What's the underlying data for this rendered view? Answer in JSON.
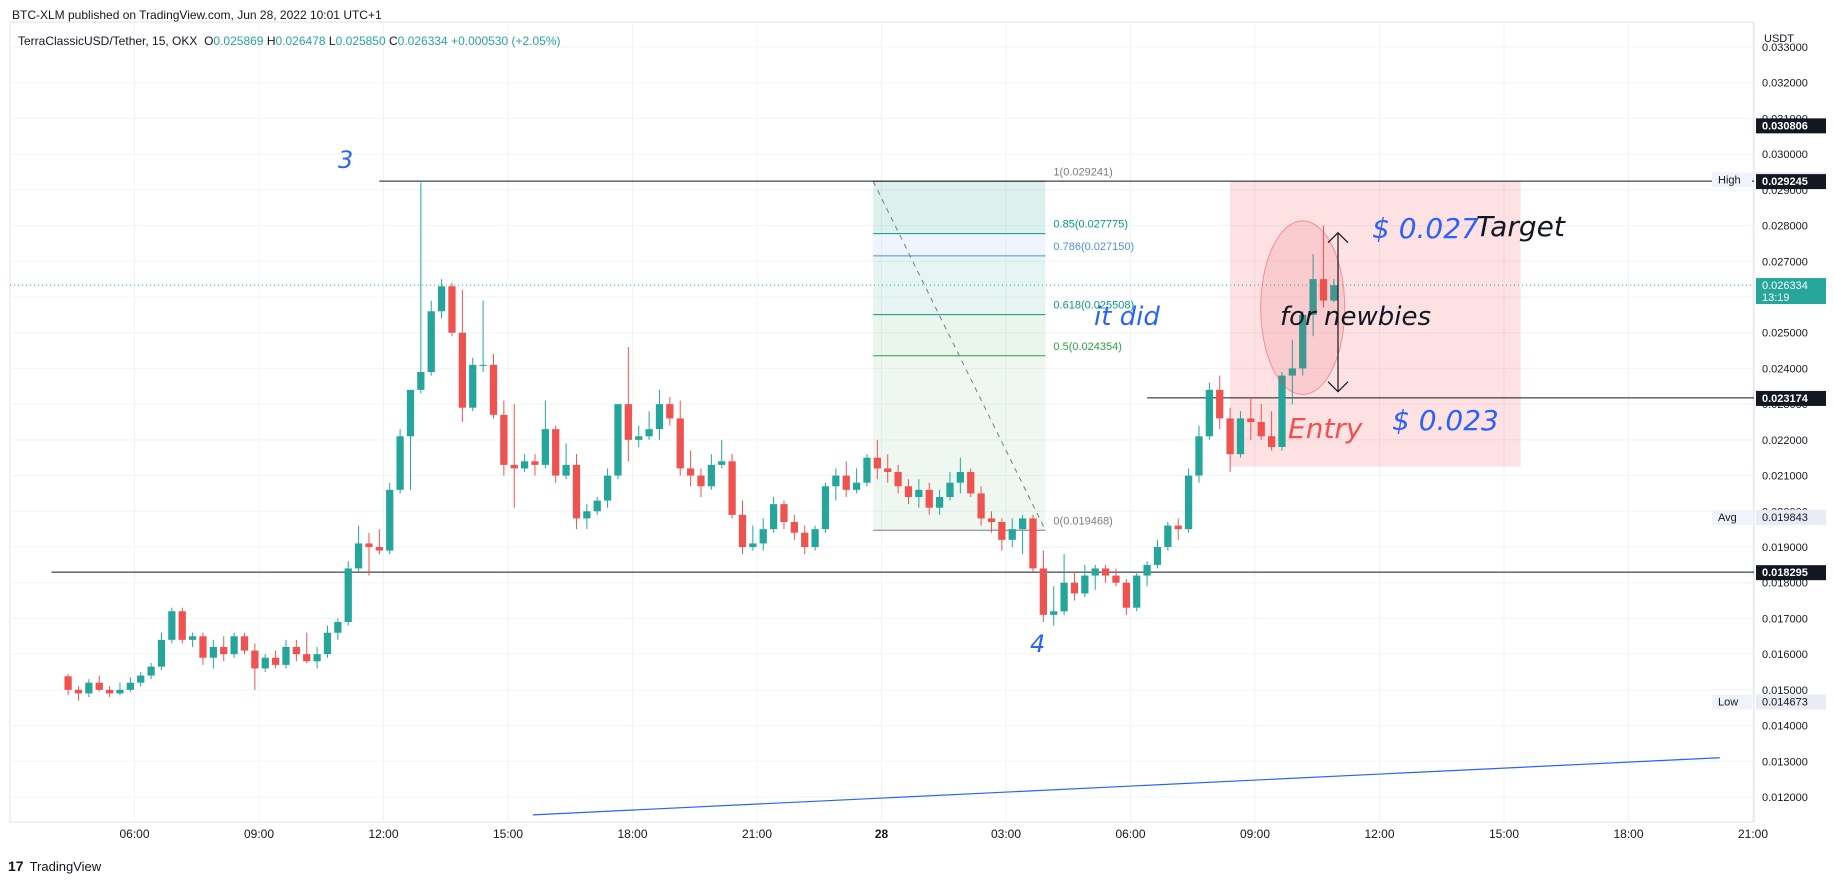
{
  "header": {
    "published": "BTC-XLM published on TradingView.com, Jun 28, 2022 10:01 UTC+1"
  },
  "legend": {
    "symbol": "TerraClassicUSD/Tether, 15, OKX",
    "o_label": "O",
    "o": "0.025869",
    "h_label": "H",
    "h": "0.026478",
    "l_label": "L",
    "l": "0.025850",
    "c_label": "C",
    "c": "0.026334",
    "change": "+0.000530 (+2.05%)"
  },
  "footer": {
    "brand": "TradingView",
    "logo": "17"
  },
  "colors": {
    "up": "#26a69a",
    "down": "#ef5350",
    "fib_green": "#2e9e48",
    "fib_blue": "#4a90e2",
    "accent": "#2962ff"
  },
  "annotations": {
    "wave3": "3",
    "wave4": "4",
    "it_did": "it did",
    "target_price": "$ 0.027",
    "target": "Target",
    "newbies": "for newbies",
    "entry": "Entry",
    "entry_price": "$ 0.023"
  },
  "chart_data": {
    "type": "candlestick",
    "currency": "USDT",
    "ylim": [
      0.0113,
      0.0337
    ],
    "y_ticks": [
      "0.012000",
      "0.013000",
      "0.014000",
      "0.015000",
      "0.016000",
      "0.017000",
      "0.018000",
      "0.019000",
      "0.020000",
      "0.021000",
      "0.022000",
      "0.023000",
      "0.024000",
      "0.025000",
      "0.026000",
      "0.027000",
      "0.028000",
      "0.029000",
      "0.030000",
      "0.031000",
      "0.032000",
      "0.033000"
    ],
    "x_ticks": [
      "06:00",
      "09:00",
      "12:00",
      "15:00",
      "18:00",
      "21:00",
      "28",
      "03:00",
      "06:00",
      "09:00",
      "12:00",
      "15:00",
      "18:00",
      "21:00"
    ],
    "x_start_hour": 4.4,
    "candles": [
      {
        "o": 0.01538,
        "h": 0.01545,
        "l": 0.01485,
        "c": 0.015
      },
      {
        "o": 0.015,
        "h": 0.0151,
        "l": 0.0147,
        "c": 0.0149
      },
      {
        "o": 0.0149,
        "h": 0.0153,
        "l": 0.0148,
        "c": 0.0152
      },
      {
        "o": 0.0152,
        "h": 0.0154,
        "l": 0.01495,
        "c": 0.015
      },
      {
        "o": 0.015,
        "h": 0.0151,
        "l": 0.0148,
        "c": 0.0149
      },
      {
        "o": 0.0149,
        "h": 0.0152,
        "l": 0.01485,
        "c": 0.015
      },
      {
        "o": 0.015,
        "h": 0.01535,
        "l": 0.01495,
        "c": 0.0152
      },
      {
        "o": 0.0152,
        "h": 0.0155,
        "l": 0.0151,
        "c": 0.0154
      },
      {
        "o": 0.0154,
        "h": 0.01575,
        "l": 0.0153,
        "c": 0.01565
      },
      {
        "o": 0.01565,
        "h": 0.0166,
        "l": 0.01555,
        "c": 0.0164
      },
      {
        "o": 0.0164,
        "h": 0.0173,
        "l": 0.0163,
        "c": 0.0172
      },
      {
        "o": 0.0172,
        "h": 0.0173,
        "l": 0.0163,
        "c": 0.0164
      },
      {
        "o": 0.0164,
        "h": 0.0166,
        "l": 0.0162,
        "c": 0.0165
      },
      {
        "o": 0.0165,
        "h": 0.0166,
        "l": 0.0157,
        "c": 0.0159
      },
      {
        "o": 0.0159,
        "h": 0.0164,
        "l": 0.0156,
        "c": 0.0162
      },
      {
        "o": 0.0162,
        "h": 0.0165,
        "l": 0.0158,
        "c": 0.016
      },
      {
        "o": 0.016,
        "h": 0.0166,
        "l": 0.0159,
        "c": 0.0165
      },
      {
        "o": 0.0165,
        "h": 0.0166,
        "l": 0.016,
        "c": 0.0161
      },
      {
        "o": 0.0161,
        "h": 0.0163,
        "l": 0.015,
        "c": 0.0156
      },
      {
        "o": 0.0156,
        "h": 0.016,
        "l": 0.0155,
        "c": 0.0159
      },
      {
        "o": 0.0159,
        "h": 0.0161,
        "l": 0.0156,
        "c": 0.0157
      },
      {
        "o": 0.0157,
        "h": 0.0164,
        "l": 0.0156,
        "c": 0.0162
      },
      {
        "o": 0.0162,
        "h": 0.0164,
        "l": 0.0158,
        "c": 0.016
      },
      {
        "o": 0.016,
        "h": 0.0166,
        "l": 0.01575,
        "c": 0.0158
      },
      {
        "o": 0.0158,
        "h": 0.0162,
        "l": 0.0156,
        "c": 0.016
      },
      {
        "o": 0.016,
        "h": 0.0168,
        "l": 0.0159,
        "c": 0.0166
      },
      {
        "o": 0.0166,
        "h": 0.017,
        "l": 0.0164,
        "c": 0.0169
      },
      {
        "o": 0.0169,
        "h": 0.0186,
        "l": 0.0168,
        "c": 0.0184
      },
      {
        "o": 0.0184,
        "h": 0.0196,
        "l": 0.0183,
        "c": 0.0191
      },
      {
        "o": 0.0191,
        "h": 0.0194,
        "l": 0.0182,
        "c": 0.019
      },
      {
        "o": 0.019,
        "h": 0.0195,
        "l": 0.0188,
        "c": 0.0189
      },
      {
        "o": 0.0189,
        "h": 0.0208,
        "l": 0.0188,
        "c": 0.0206
      },
      {
        "o": 0.0206,
        "h": 0.0223,
        "l": 0.0205,
        "c": 0.0221
      },
      {
        "o": 0.0221,
        "h": 0.0234,
        "l": 0.0206,
        "c": 0.0234
      },
      {
        "o": 0.0234,
        "h": 0.0292,
        "l": 0.0233,
        "c": 0.0239
      },
      {
        "o": 0.0239,
        "h": 0.0259,
        "l": 0.0238,
        "c": 0.0256
      },
      {
        "o": 0.0256,
        "h": 0.0265,
        "l": 0.0254,
        "c": 0.0263
      },
      {
        "o": 0.0263,
        "h": 0.0264,
        "l": 0.0249,
        "c": 0.025
      },
      {
        "o": 0.025,
        "h": 0.0262,
        "l": 0.0225,
        "c": 0.0229
      },
      {
        "o": 0.0229,
        "h": 0.0243,
        "l": 0.0228,
        "c": 0.0241
      },
      {
        "o": 0.0241,
        "h": 0.0259,
        "l": 0.0239,
        "c": 0.0241
      },
      {
        "o": 0.0241,
        "h": 0.0244,
        "l": 0.0226,
        "c": 0.0227
      },
      {
        "o": 0.0227,
        "h": 0.0231,
        "l": 0.021,
        "c": 0.0213
      },
      {
        "o": 0.0213,
        "h": 0.023,
        "l": 0.0201,
        "c": 0.0212
      },
      {
        "o": 0.0212,
        "h": 0.0216,
        "l": 0.0211,
        "c": 0.0214
      },
      {
        "o": 0.0214,
        "h": 0.0216,
        "l": 0.021,
        "c": 0.0213
      },
      {
        "o": 0.0213,
        "h": 0.0231,
        "l": 0.0212,
        "c": 0.0223
      },
      {
        "o": 0.0223,
        "h": 0.0224,
        "l": 0.0208,
        "c": 0.021
      },
      {
        "o": 0.021,
        "h": 0.0219,
        "l": 0.0209,
        "c": 0.0213
      },
      {
        "o": 0.0213,
        "h": 0.0216,
        "l": 0.0195,
        "c": 0.0198
      },
      {
        "o": 0.0198,
        "h": 0.0202,
        "l": 0.0195,
        "c": 0.02
      },
      {
        "o": 0.02,
        "h": 0.0204,
        "l": 0.0199,
        "c": 0.0203
      },
      {
        "o": 0.0203,
        "h": 0.0212,
        "l": 0.0201,
        "c": 0.021
      },
      {
        "o": 0.021,
        "h": 0.0229,
        "l": 0.0209,
        "c": 0.023
      },
      {
        "o": 0.023,
        "h": 0.0246,
        "l": 0.0214,
        "c": 0.022
      },
      {
        "o": 0.022,
        "h": 0.0224,
        "l": 0.0218,
        "c": 0.0221
      },
      {
        "o": 0.0221,
        "h": 0.0228,
        "l": 0.022,
        "c": 0.0223
      },
      {
        "o": 0.0223,
        "h": 0.0234,
        "l": 0.022,
        "c": 0.023
      },
      {
        "o": 0.023,
        "h": 0.0232,
        "l": 0.0224,
        "c": 0.0226
      },
      {
        "o": 0.0226,
        "h": 0.0231,
        "l": 0.021,
        "c": 0.0212
      },
      {
        "o": 0.0212,
        "h": 0.0217,
        "l": 0.0207,
        "c": 0.021
      },
      {
        "o": 0.021,
        "h": 0.0212,
        "l": 0.0204,
        "c": 0.0207
      },
      {
        "o": 0.0207,
        "h": 0.0216,
        "l": 0.0206,
        "c": 0.0213
      },
      {
        "o": 0.0213,
        "h": 0.022,
        "l": 0.0212,
        "c": 0.0214
      },
      {
        "o": 0.0214,
        "h": 0.0216,
        "l": 0.0198,
        "c": 0.0199
      },
      {
        "o": 0.0199,
        "h": 0.0203,
        "l": 0.0188,
        "c": 0.019
      },
      {
        "o": 0.019,
        "h": 0.0196,
        "l": 0.0189,
        "c": 0.0191
      },
      {
        "o": 0.0191,
        "h": 0.0198,
        "l": 0.0189,
        "c": 0.0195
      },
      {
        "o": 0.0195,
        "h": 0.0204,
        "l": 0.0194,
        "c": 0.0202
      },
      {
        "o": 0.0202,
        "h": 0.0203,
        "l": 0.0195,
        "c": 0.0197
      },
      {
        "o": 0.0197,
        "h": 0.0199,
        "l": 0.0192,
        "c": 0.0194
      },
      {
        "o": 0.0194,
        "h": 0.0196,
        "l": 0.0188,
        "c": 0.019
      },
      {
        "o": 0.019,
        "h": 0.0196,
        "l": 0.0189,
        "c": 0.0195
      },
      {
        "o": 0.0195,
        "h": 0.0208,
        "l": 0.0194,
        "c": 0.0207
      },
      {
        "o": 0.0207,
        "h": 0.0212,
        "l": 0.0203,
        "c": 0.021
      },
      {
        "o": 0.021,
        "h": 0.0214,
        "l": 0.0204,
        "c": 0.0206
      },
      {
        "o": 0.0206,
        "h": 0.0212,
        "l": 0.0205,
        "c": 0.0208
      },
      {
        "o": 0.0208,
        "h": 0.0216,
        "l": 0.0207,
        "c": 0.0215
      },
      {
        "o": 0.0215,
        "h": 0.022,
        "l": 0.0209,
        "c": 0.0212
      },
      {
        "o": 0.0212,
        "h": 0.0216,
        "l": 0.0208,
        "c": 0.0211
      },
      {
        "o": 0.0211,
        "h": 0.0213,
        "l": 0.0205,
        "c": 0.0207
      },
      {
        "o": 0.0207,
        "h": 0.0209,
        "l": 0.0202,
        "c": 0.0204
      },
      {
        "o": 0.0204,
        "h": 0.0209,
        "l": 0.0201,
        "c": 0.0206
      },
      {
        "o": 0.0206,
        "h": 0.0208,
        "l": 0.0199,
        "c": 0.0201
      },
      {
        "o": 0.0201,
        "h": 0.0206,
        "l": 0.0199,
        "c": 0.0204
      },
      {
        "o": 0.0204,
        "h": 0.0211,
        "l": 0.0203,
        "c": 0.0208
      },
      {
        "o": 0.0208,
        "h": 0.0215,
        "l": 0.0205,
        "c": 0.0211
      },
      {
        "o": 0.0211,
        "h": 0.0212,
        "l": 0.0204,
        "c": 0.0205
      },
      {
        "o": 0.0205,
        "h": 0.0207,
        "l": 0.0196,
        "c": 0.0198
      },
      {
        "o": 0.0198,
        "h": 0.02,
        "l": 0.0194,
        "c": 0.0197
      },
      {
        "o": 0.0197,
        "h": 0.0198,
        "l": 0.0189,
        "c": 0.0192
      },
      {
        "o": 0.0192,
        "h": 0.0198,
        "l": 0.019,
        "c": 0.0195
      },
      {
        "o": 0.0195,
        "h": 0.0199,
        "l": 0.0188,
        "c": 0.0198
      },
      {
        "o": 0.0198,
        "h": 0.0199,
        "l": 0.0183,
        "c": 0.0184
      },
      {
        "o": 0.0184,
        "h": 0.0189,
        "l": 0.0169,
        "c": 0.0171
      },
      {
        "o": 0.0171,
        "h": 0.0179,
        "l": 0.0168,
        "c": 0.0172
      },
      {
        "o": 0.0172,
        "h": 0.0188,
        "l": 0.0171,
        "c": 0.018
      },
      {
        "o": 0.018,
        "h": 0.0183,
        "l": 0.0175,
        "c": 0.0177
      },
      {
        "o": 0.0177,
        "h": 0.0185,
        "l": 0.0176,
        "c": 0.0182
      },
      {
        "o": 0.0182,
        "h": 0.0185,
        "l": 0.0178,
        "c": 0.0184
      },
      {
        "o": 0.0184,
        "h": 0.0185,
        "l": 0.018,
        "c": 0.0182
      },
      {
        "o": 0.0182,
        "h": 0.0184,
        "l": 0.0179,
        "c": 0.018
      },
      {
        "o": 0.018,
        "h": 0.0181,
        "l": 0.0171,
        "c": 0.0173
      },
      {
        "o": 0.0173,
        "h": 0.0183,
        "l": 0.0172,
        "c": 0.0182
      },
      {
        "o": 0.0182,
        "h": 0.0186,
        "l": 0.0179,
        "c": 0.0185
      },
      {
        "o": 0.0185,
        "h": 0.0192,
        "l": 0.0184,
        "c": 0.019
      },
      {
        "o": 0.019,
        "h": 0.0197,
        "l": 0.0189,
        "c": 0.0196
      },
      {
        "o": 0.0196,
        "h": 0.0198,
        "l": 0.0192,
        "c": 0.0195
      },
      {
        "o": 0.0195,
        "h": 0.0212,
        "l": 0.0194,
        "c": 0.021
      },
      {
        "o": 0.021,
        "h": 0.0224,
        "l": 0.0208,
        "c": 0.0221
      },
      {
        "o": 0.0221,
        "h": 0.0236,
        "l": 0.022,
        "c": 0.0234
      },
      {
        "o": 0.0234,
        "h": 0.0238,
        "l": 0.0223,
        "c": 0.0226
      },
      {
        "o": 0.0226,
        "h": 0.0229,
        "l": 0.0211,
        "c": 0.0216
      },
      {
        "o": 0.0216,
        "h": 0.0228,
        "l": 0.0215,
        "c": 0.0226
      },
      {
        "o": 0.0226,
        "h": 0.0232,
        "l": 0.022,
        "c": 0.0225
      },
      {
        "o": 0.0225,
        "h": 0.023,
        "l": 0.022,
        "c": 0.0221
      },
      {
        "o": 0.0221,
        "h": 0.0228,
        "l": 0.0217,
        "c": 0.0218
      },
      {
        "o": 0.0218,
        "h": 0.0239,
        "l": 0.0217,
        "c": 0.0238
      },
      {
        "o": 0.0238,
        "h": 0.0248,
        "l": 0.023,
        "c": 0.024
      },
      {
        "o": 0.024,
        "h": 0.0256,
        "l": 0.0238,
        "c": 0.0255
      },
      {
        "o": 0.0255,
        "h": 0.0272,
        "l": 0.0249,
        "c": 0.0265
      },
      {
        "o": 0.0265,
        "h": 0.028,
        "l": 0.0257,
        "c": 0.0259
      },
      {
        "o": 0.0259,
        "h": 0.0265,
        "l": 0.02585,
        "c": 0.02633
      }
    ],
    "fibonacci": [
      {
        "label": "1(0.029241)",
        "value": 0.029241,
        "color": "#787b86"
      },
      {
        "label": "0.85(0.027775)",
        "value": 0.027775,
        "color": "#089981"
      },
      {
        "label": "0.786(0.027150)",
        "value": 0.02715,
        "color": "#4a90e2"
      },
      {
        "label": "0.618(0.025508)",
        "value": 0.025508,
        "color": "#089981"
      },
      {
        "label": "0.5(0.024354)",
        "value": 0.024354,
        "color": "#2e9e48"
      },
      {
        "label": "0(0.019468)",
        "value": 0.019468,
        "color": "#787b86"
      }
    ],
    "fib_time_range": [
      23.8,
      27.95
    ],
    "horizontal_lines": [
      {
        "value": 0.029245,
        "from_hour": 11.9
      },
      {
        "value": 0.018295,
        "from_hour": 4.0
      },
      {
        "value": 0.023174,
        "from_hour": 30.4
      }
    ],
    "target_box": {
      "from_hour": 32.4,
      "to_hour": 39.4,
      "top": 0.029245,
      "bottom": 0.02125
    },
    "trendline": {
      "from": [
        15.6,
        0.0115
      ],
      "to": [
        44.2,
        0.0131
      ]
    },
    "price_tags": [
      {
        "label": "",
        "value": "0.030806",
        "price": 0.030806,
        "style": "black"
      },
      {
        "label": "High",
        "value": "0.029294",
        "price": 0.029294,
        "style": "light"
      },
      {
        "label": "",
        "value": "0.029245",
        "price": 0.029245,
        "style": "black"
      },
      {
        "label": "",
        "value": "0.026334",
        "sub": "13:19",
        "price": 0.026334,
        "style": "green"
      },
      {
        "label": "",
        "value": "0.023174",
        "price": 0.023174,
        "style": "black"
      },
      {
        "label": "Avg",
        "value": "0.019843",
        "price": 0.019843,
        "style": "light"
      },
      {
        "label": "",
        "value": "0.018295",
        "price": 0.018295,
        "style": "black"
      },
      {
        "label": "Low",
        "value": "0.014673",
        "price": 0.014673,
        "style": "light"
      }
    ]
  }
}
